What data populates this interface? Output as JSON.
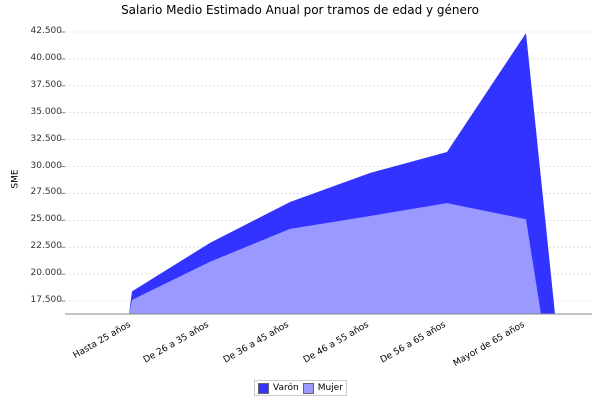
{
  "chart_data": {
    "type": "area",
    "title": "Salario Medio Estimado Anual por tramos de edad y género",
    "xlabel": "",
    "ylabel": "SME",
    "ylim": [
      16300,
      43500
    ],
    "yticks": [
      "17.500",
      "20.000",
      "22.500",
      "25.000",
      "27.500",
      "30.000",
      "32.500",
      "35.000",
      "37.500",
      "40.000",
      "42.500"
    ],
    "categories": [
      "Hasta 25 años",
      "De 26 a 35 años",
      "De 36 a 45 años",
      "De 46 a 55 años",
      "De 56 a 65 años",
      "Mayor de 65 años"
    ],
    "series": [
      {
        "name": "Varón",
        "color": "#3333ff",
        "values": [
          18400,
          22900,
          26700,
          29400,
          31350,
          42400
        ]
      },
      {
        "name": "Mujer",
        "color": "#9999ff",
        "values": [
          17600,
          21150,
          24200,
          25400,
          26600,
          25100
        ]
      }
    ],
    "grid": true,
    "legend_position": "bottom"
  }
}
